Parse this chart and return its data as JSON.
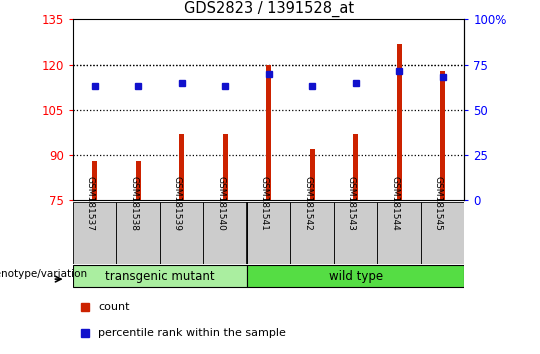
{
  "title": "GDS2823 / 1391528_at",
  "samples": [
    "GSM181537",
    "GSM181538",
    "GSM181539",
    "GSM181540",
    "GSM181541",
    "GSM181542",
    "GSM181543",
    "GSM181544",
    "GSM181545"
  ],
  "bar_heights": [
    88,
    88,
    97,
    97,
    120,
    92,
    97,
    127,
    118
  ],
  "blue_dots": [
    113,
    113,
    114,
    113,
    117,
    113,
    114,
    118,
    116
  ],
  "yticks_left": [
    75,
    90,
    105,
    120,
    135
  ],
  "yticks_right_vals": [
    75,
    90,
    105,
    120,
    135
  ],
  "yticks_right_labels": [
    "0",
    "25",
    "50",
    "75",
    "100%"
  ],
  "bar_color": "#CC2200",
  "dot_color": "#1111CC",
  "transgenic_color": "#AAEEA0",
  "wildtype_color": "#55DD44",
  "transgenic_label": "transgenic mutant",
  "wildtype_label": "wild type",
  "xlabel_bottom": "genotype/variation",
  "legend_count": "count",
  "legend_pct": "percentile rank within the sample",
  "ymin": 75,
  "ymax": 135,
  "bar_width": 0.12,
  "n_transgenic": 4,
  "n_samples": 9,
  "cell_color": "#CCCCCC"
}
